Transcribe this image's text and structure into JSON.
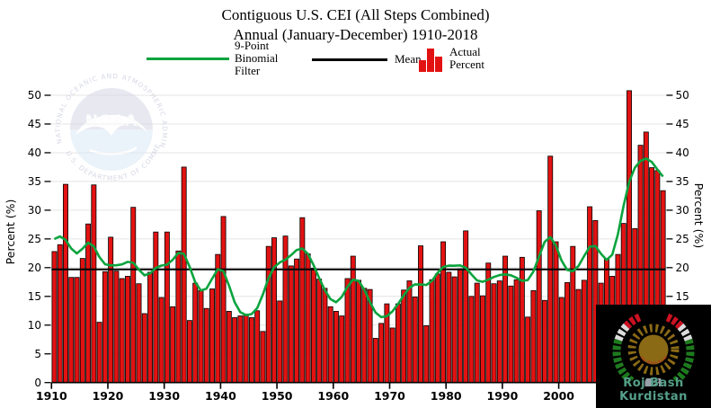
{
  "title": {
    "line1": "Contiguous U.S. CEI (All Steps Combined)",
    "line2": "Annual (January-December) 1910-2018"
  },
  "legend": {
    "filter_lines": [
      "9-Point",
      "Binomial",
      "Filter"
    ],
    "mean_label": "Mean",
    "actual_lines": [
      "Actual",
      "Percent"
    ]
  },
  "axes": {
    "y_label_left": "Percent (%)",
    "y_label_right": "Percent (%)",
    "y_ticks": [
      0,
      5,
      10,
      15,
      20,
      25,
      30,
      35,
      40,
      45,
      50
    ],
    "x_ticks": [
      1910,
      1920,
      1930,
      1940,
      1950,
      1960,
      1970,
      1980,
      1990,
      2000
    ]
  },
  "mean_value": 19.7,
  "watermark": {
    "name": "NOAA",
    "arc_top": "NATIONAL OCEANIC AND ATMOSPHERIC ADMINISTRATION",
    "arc_bottom": "U.S. DEPARTMENT OF COMMERCE"
  },
  "logo": {
    "text": "Roj Bash Kurdistan"
  },
  "colors": {
    "bar": "#e31212",
    "filter_line": "#0aa43e",
    "mean_line": "#000000",
    "grid": "#e4e4e4",
    "axis": "#000000",
    "logo_bg": "#000000",
    "logo_text": "#55a089",
    "sun": "#8a6a15",
    "wreath_red": "#cc1122",
    "wreath_white": "#dcdcdc",
    "wreath_green": "#1e7a1e"
  },
  "chart_data": {
    "type": "bar",
    "title": "Contiguous U.S. CEI (All Steps Combined) Annual (January-December) 1910-2018",
    "xlabel": "",
    "ylabel": "Percent (%)",
    "ylim": [
      0,
      52
    ],
    "grid": true,
    "legend_position": "top",
    "x_start": 1910,
    "x_end": 2018,
    "mean": 19.7,
    "smoothing": "9-point binomial filter",
    "values": [
      22.8,
      24.0,
      34.5,
      18.3,
      18.3,
      21.6,
      27.6,
      34.4,
      10.5,
      19.3,
      25.3,
      19.4,
      18.1,
      18.5,
      30.5,
      17.2,
      12.0,
      19.2,
      26.2,
      14.8,
      26.2,
      13.2,
      22.9,
      37.5,
      10.8,
      17.3,
      16.0,
      12.9,
      16.3,
      22.3,
      28.9,
      12.4,
      11.3,
      11.6,
      11.9,
      11.3,
      12.5,
      8.9,
      23.7,
      25.2,
      14.2,
      25.5,
      20.3,
      21.5,
      28.7,
      22.4,
      19.9,
      18.0,
      16.4,
      13.2,
      12.4,
      11.6,
      18.1,
      22.0,
      17.8,
      16.4,
      16.2,
      7.7,
      10.3,
      13.7,
      9.5,
      13.7,
      16.1,
      17.7,
      14.9,
      23.8,
      9.9,
      17.9,
      18.9,
      24.5,
      19.2,
      18.4,
      19.8,
      26.4,
      15.0,
      17.3,
      15.1,
      20.8,
      17.2,
      17.7,
      22.0,
      16.8,
      17.9,
      21.8,
      11.4,
      16.0,
      29.9,
      14.3,
      39.4,
      24.5,
      14.8,
      17.4,
      23.7,
      16.2,
      17.8,
      30.6,
      28.2,
      17.3,
      21.6,
      18.5,
      22.3,
      27.7,
      50.8,
      26.8,
      41.3,
      43.6,
      37.4,
      36.9,
      33.4
    ]
  }
}
